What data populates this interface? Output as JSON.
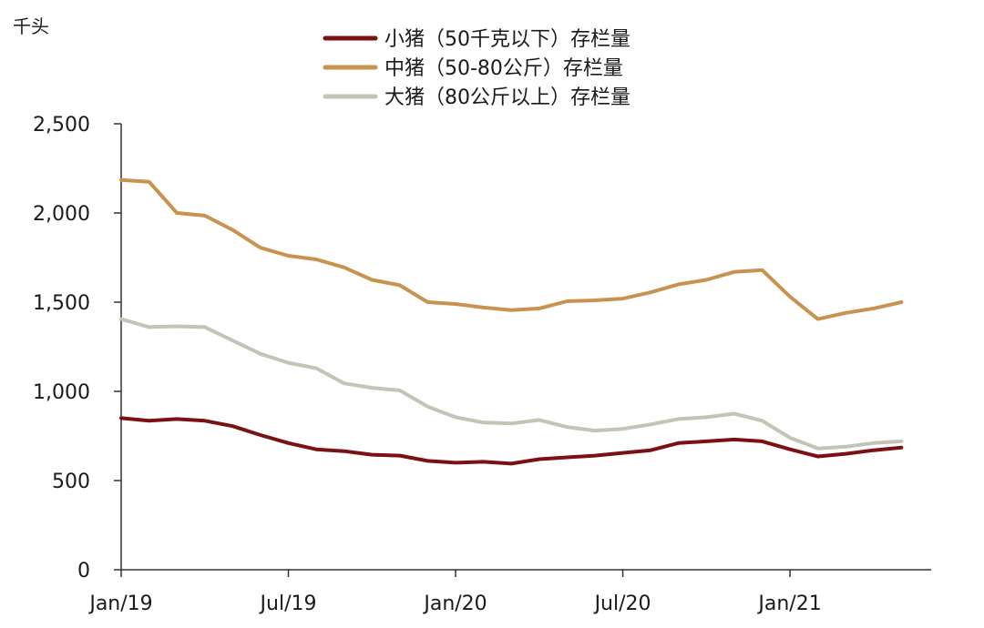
{
  "chart_data": {
    "type": "line",
    "unit_label": "千头",
    "x": [
      "2019-01",
      "2019-02",
      "2019-03",
      "2019-04",
      "2019-05",
      "2019-06",
      "2019-07",
      "2019-08",
      "2019-09",
      "2019-10",
      "2019-11",
      "2019-12",
      "2020-01",
      "2020-02",
      "2020-03",
      "2020-04",
      "2020-05",
      "2020-06",
      "2020-07",
      "2020-08",
      "2020-09",
      "2020-10",
      "2020-11",
      "2020-12",
      "2021-01",
      "2021-02",
      "2021-03",
      "2021-04",
      "2021-05",
      "2021-06"
    ],
    "x_ticks": [
      {
        "x": "2019-01",
        "label": "Jan/19"
      },
      {
        "x": "2019-07",
        "label": "Jul/19"
      },
      {
        "x": "2020-01",
        "label": "Jan/20"
      },
      {
        "x": "2020-07",
        "label": "Jul/20"
      },
      {
        "x": "2021-01",
        "label": "Jan/21"
      }
    ],
    "y_ticks": [
      {
        "value": 0,
        "label": "0"
      },
      {
        "value": 500,
        "label": "500"
      },
      {
        "value": 1000,
        "label": "1,000"
      },
      {
        "value": 1500,
        "label": "1,500"
      },
      {
        "value": 2000,
        "label": "2,000"
      },
      {
        "value": 2500,
        "label": "2,500"
      }
    ],
    "ylim": [
      0,
      2500
    ],
    "grid": false,
    "legend_position": "top-center",
    "series": [
      {
        "name": "小猪（50千克以下）存栏量",
        "color": "#7b1113",
        "values": [
          850,
          835,
          845,
          835,
          805,
          755,
          710,
          675,
          665,
          645,
          640,
          610,
          600,
          605,
          595,
          620,
          630,
          640,
          655,
          670,
          710,
          720,
          730,
          720,
          675,
          635,
          650,
          670,
          685,
          null
        ]
      },
      {
        "name": "中猪（50-80公斤）存栏量",
        "color": "#c8924f",
        "values": [
          2185,
          2175,
          2000,
          1985,
          1905,
          1805,
          1760,
          1740,
          1695,
          1625,
          1595,
          1500,
          1490,
          1470,
          1455,
          1465,
          1505,
          1510,
          1520,
          1555,
          1600,
          1625,
          1670,
          1680,
          1530,
          1405,
          1440,
          1465,
          1500,
          null
        ]
      },
      {
        "name": "大猪（80公斤以上）存栏量",
        "color": "#c3c3b6",
        "values": [
          1405,
          1360,
          1365,
          1360,
          1285,
          1210,
          1160,
          1130,
          1045,
          1020,
          1005,
          915,
          855,
          825,
          820,
          840,
          800,
          780,
          790,
          815,
          845,
          855,
          875,
          835,
          740,
          680,
          690,
          710,
          720,
          null
        ]
      }
    ]
  }
}
